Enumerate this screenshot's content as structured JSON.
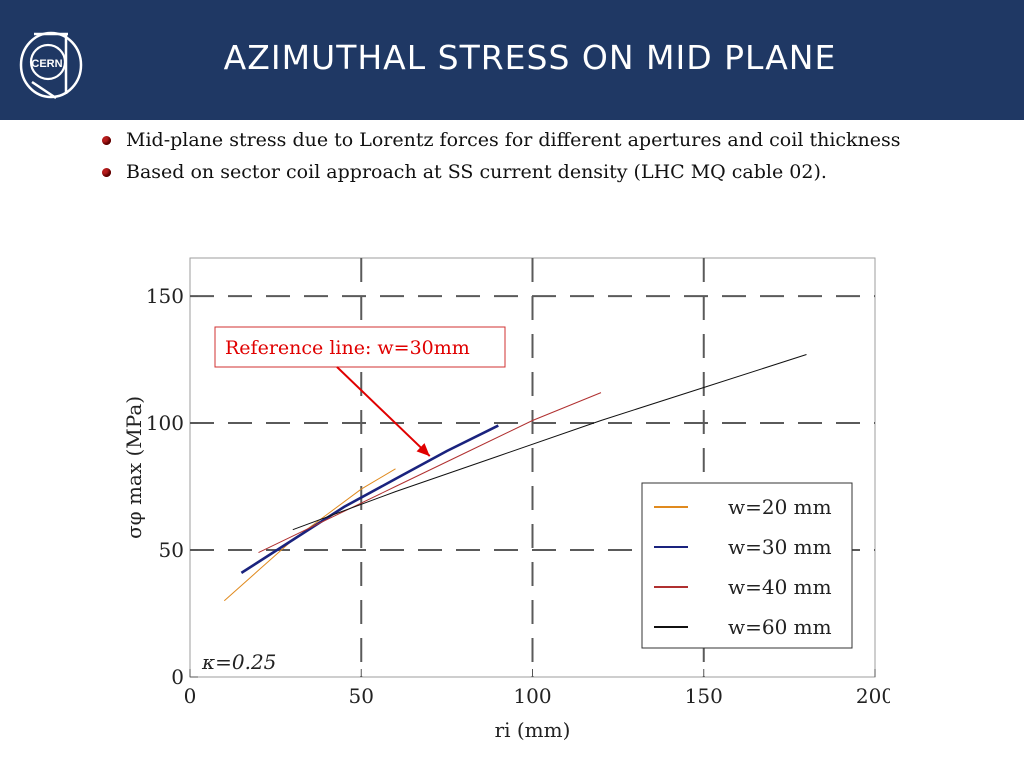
{
  "header": {
    "title": "Azimuthal stress on mid plane",
    "logo_text": "CERN"
  },
  "bullets": [
    "Mid-plane stress due to Lorentz forces for different apertures and coil thickness",
    " Based on sector coil approach at SS current density (LHC MQ cable 02)."
  ],
  "colors": {
    "header_bg": "#1f3864",
    "bullet": "#b71c1c",
    "annotation": "#e00000"
  },
  "chart_data": {
    "type": "line",
    "xlabel": "ri (mm)",
    "ylabel": "σφ max (MPa)",
    "xlim": [
      0,
      200
    ],
    "ylim": [
      0,
      165
    ],
    "x_ticks": [
      0,
      50,
      100,
      150,
      200
    ],
    "y_ticks": [
      0,
      50,
      100,
      150
    ],
    "grid": "dashed",
    "legend_position": "bottom-right",
    "annotation_text": "Reference line: w=30mm",
    "annotation_arrow_to": [
      70,
      87
    ],
    "kappa_label": "κ=0.25",
    "series": [
      {
        "name": "w=20 mm",
        "color": "#e08a1e",
        "width": 1,
        "x": [
          10,
          20,
          30,
          40,
          50,
          60
        ],
        "y": [
          30,
          42,
          54,
          64,
          74,
          82
        ]
      },
      {
        "name": "w=30 mm",
        "color": "#1a237e",
        "width": 2.6,
        "x": [
          15,
          30,
          45,
          60,
          75,
          90
        ],
        "y": [
          41,
          54,
          67,
          78,
          89,
          99
        ]
      },
      {
        "name": "w=40 mm",
        "color": "#b03030",
        "width": 1,
        "x": [
          20,
          40,
          60,
          80,
          100,
          120
        ],
        "y": [
          49,
          62,
          75,
          88,
          101,
          112
        ]
      },
      {
        "name": "w=60 mm",
        "color": "#111111",
        "width": 1,
        "x": [
          30,
          60,
          90,
          120,
          150,
          180
        ],
        "y": [
          58,
          73,
          87,
          101,
          114,
          127
        ]
      }
    ]
  }
}
